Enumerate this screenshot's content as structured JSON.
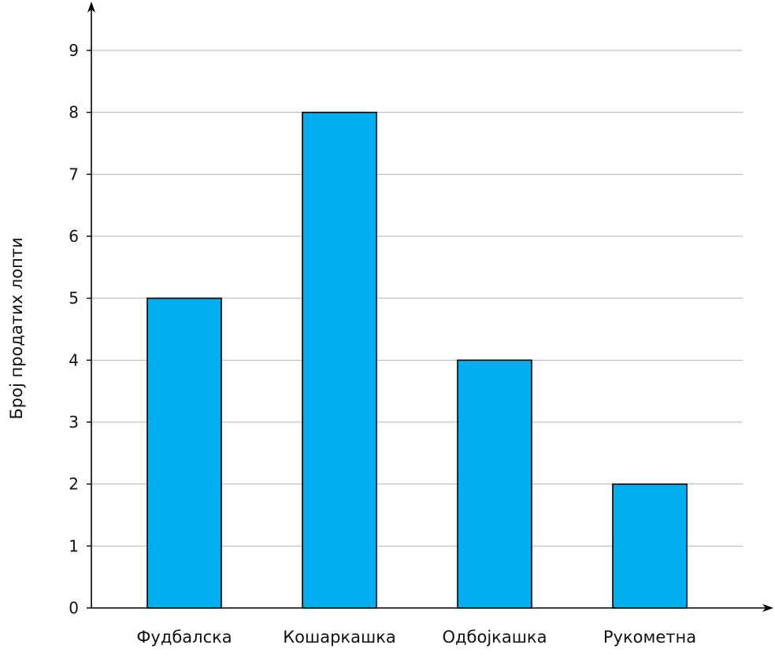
{
  "chart_data": {
    "type": "bar",
    "categories": [
      "Фудбалска",
      "Кошаркашка",
      "Одбојкашка",
      "Рукометна"
    ],
    "values": [
      5,
      8,
      4,
      2
    ],
    "title": "",
    "xlabel": "",
    "ylabel": "Број продатих лопти",
    "ylim": [
      0,
      9
    ],
    "yticks": [
      0,
      1,
      2,
      3,
      4,
      5,
      6,
      7,
      8,
      9
    ],
    "grid": true,
    "legend": "none",
    "colors": {
      "bar": "#00AEEF",
      "bar_stroke": "#000000",
      "grid": "#b3b3b3",
      "axis": "#000000"
    }
  }
}
